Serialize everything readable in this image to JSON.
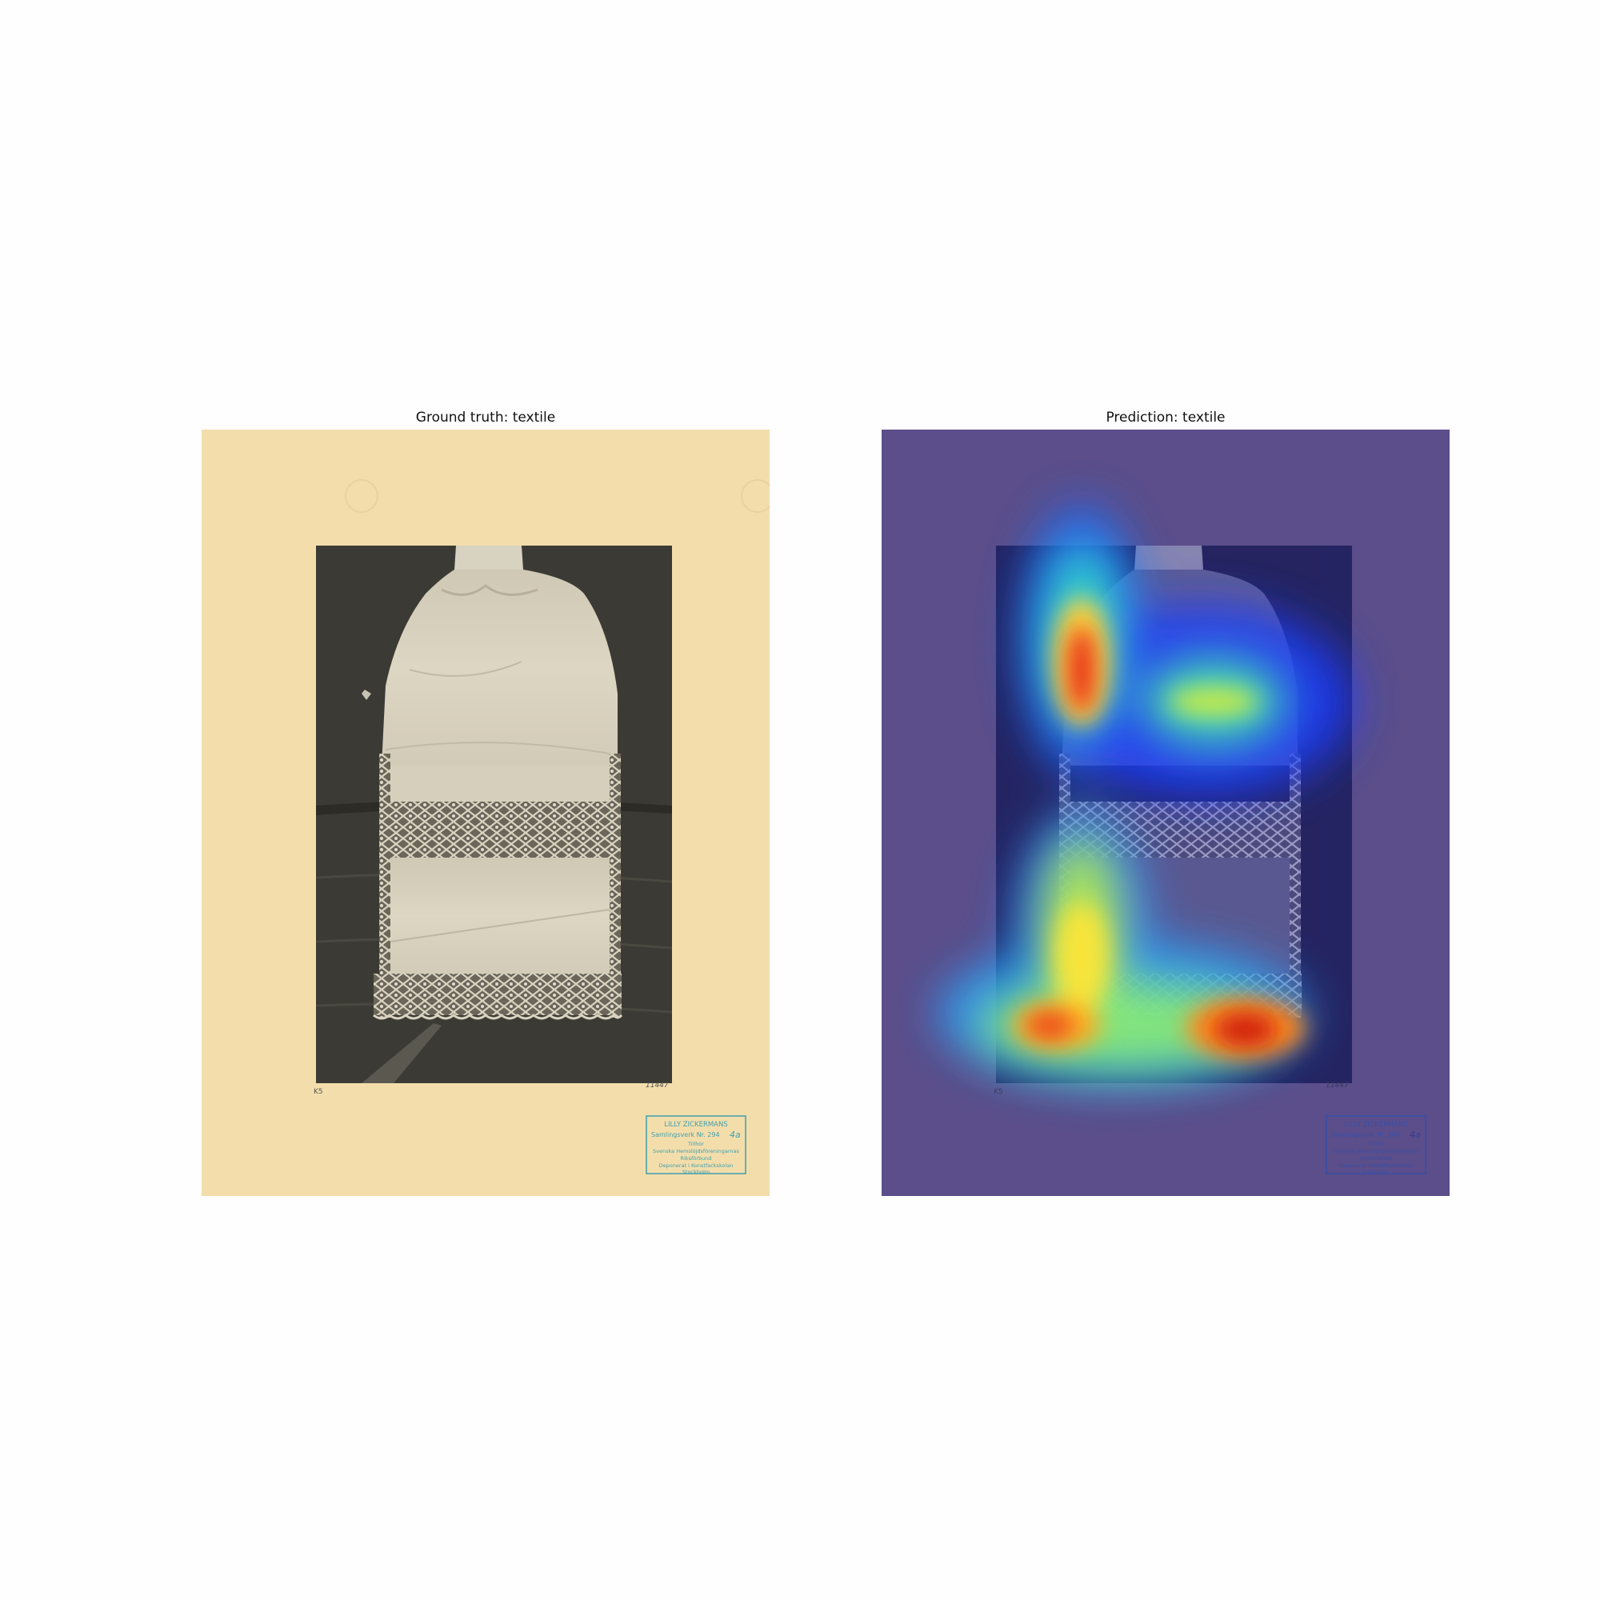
{
  "figure": {
    "left_panel": {
      "title": "Ground truth: textile"
    },
    "right_panel": {
      "title": "Prediction: textile"
    }
  },
  "photo": {
    "subject": "lace-trimmed textile photograph",
    "corner_marks": {
      "left": "K5",
      "right": "11447"
    }
  },
  "stamp": {
    "line1": "LILLY ZICKERMANS",
    "line2": "Samlingsverk Nr. 294",
    "handwritten": "4a",
    "line3": "Tillhör",
    "line4": "Svenska Hemslöjdsföreningarnas",
    "line5": "Riksförbund",
    "line6": "Deponerat i Konstfackskolan",
    "line7": "Stockholm"
  },
  "colors": {
    "paper": "#f3deab",
    "photo_background": "#3b3a34",
    "stamp_ink": "#3e9fb0",
    "heatmap_base": "#5b4e8a"
  }
}
